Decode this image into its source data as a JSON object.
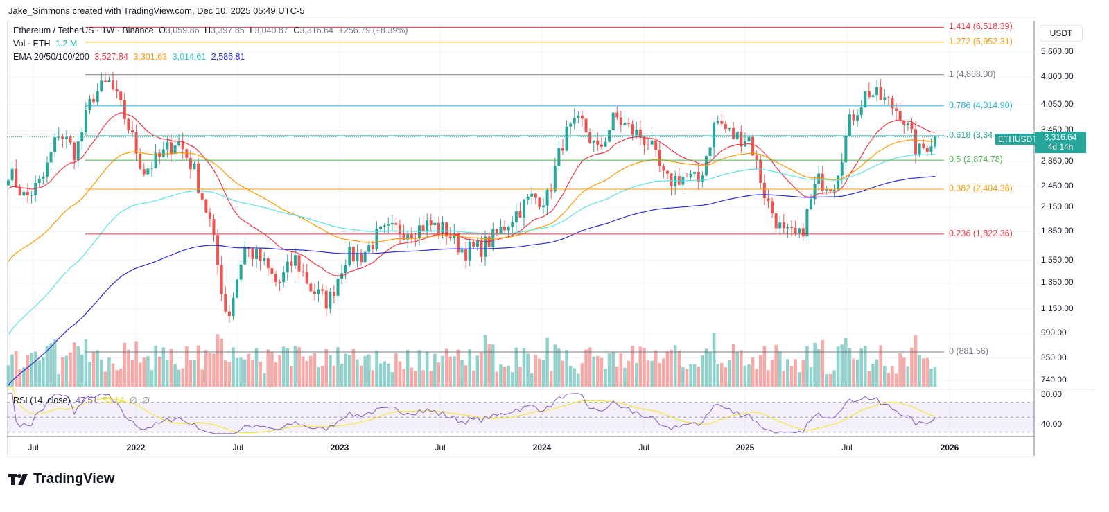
{
  "credit": "Jake_Simmons created with TradingView.com, Dec 10, 2025 05:49 UTC-5",
  "legend": {
    "symbol": "Ethereum / TetherUS · 1W · Binance",
    "o_label": "O",
    "o": "3,059.86",
    "h_label": "H",
    "h": "3,397.85",
    "l_label": "L",
    "l": "3,040.87",
    "c_label": "C",
    "c": "3,316.64",
    "change": "+256.79 (+8.39%)",
    "vol_label": "Vol · ETH",
    "vol": "1.2 M",
    "ema_label": "EMA 20/50/100/200",
    "ema20": "3,527.84",
    "ema50": "3,301.63",
    "ema100": "3,014.61",
    "ema200": "2,586.81",
    "rsi_label": "RSI (14, close)",
    "rsi": "47.51",
    "rsi_ma": "53.14",
    "na1": "∅",
    "na2": "∅"
  },
  "colors": {
    "up": "#26a69a",
    "down": "#ef5350",
    "vol_up": "#92d2cc",
    "vol_down": "#f7a9a7",
    "ema20": "#f23645",
    "ema50": "#ff9800",
    "ema100": "#5ce1e6",
    "ema200": "#2a2ad6",
    "rsi": "#7e57c2",
    "rsi_ma": "#f5e642"
  },
  "axis": {
    "currency": "USDT",
    "price_ticks": [
      "5,600.00",
      "4,800.00",
      "4,050.00",
      "3,450.00",
      "2,850.00",
      "2,450.00",
      "2,150.00",
      "1,850.00",
      "1,550.00",
      "1,350.00",
      "1,150.00",
      "990.00",
      "850.00",
      "740.00"
    ],
    "rsi_ticks": [
      "80.00",
      "40.00"
    ],
    "time_ticks": [
      "Jul",
      "2022",
      "Jul",
      "2023",
      "Jul",
      "2024",
      "Jul",
      "2025",
      "Jul",
      "2026"
    ]
  },
  "last": {
    "symbol": "ETHUSDT",
    "price": "3,316.64",
    "countdown": "4d 14h"
  },
  "fib": [
    {
      "label": "1.414 (6,518.39)",
      "price": 6518.39,
      "color": "#f23645"
    },
    {
      "label": "1.272 (5,952.31)",
      "price": 5952.31,
      "color": "#f59d0b"
    },
    {
      "label": "1 (4,868.00)",
      "price": 4868.0,
      "color": "#787b86"
    },
    {
      "label": "0.786 (4,014.90)",
      "price": 4014.9,
      "color": "#22b3d4"
    },
    {
      "label": "0.618 (3,34",
      "price": 3340,
      "color": "#26a69a"
    },
    {
      "label": "0.5 (2,874.78)",
      "price": 2874.78,
      "color": "#4caf50"
    },
    {
      "label": "0.382 (2,404.38)",
      "price": 2404.38,
      "color": "#f59d0b"
    },
    {
      "label": "0.236 (1,822.36)",
      "price": 1822.36,
      "color": "#f23645"
    },
    {
      "label": "0 (881.56)",
      "price": 881.56,
      "color": "#787b86"
    }
  ],
  "chart_data": {
    "type": "candlestick",
    "interval": "1W",
    "y_scale": "log",
    "grid": true,
    "approx_monthly_close": {
      "months": [
        "2021-05",
        "2021-06",
        "2021-07",
        "2021-08",
        "2021-09",
        "2021-10",
        "2021-11",
        "2021-12",
        "2022-01",
        "2022-02",
        "2022-03",
        "2022-04",
        "2022-05",
        "2022-06",
        "2022-07",
        "2022-08",
        "2022-09",
        "2022-10",
        "2022-11",
        "2022-12",
        "2023-01",
        "2023-02",
        "2023-03",
        "2023-04",
        "2023-05",
        "2023-06",
        "2023-07",
        "2023-08",
        "2023-09",
        "2023-10",
        "2023-11",
        "2023-12",
        "2024-01",
        "2024-02",
        "2024-03",
        "2024-04",
        "2024-05",
        "2024-06",
        "2024-07",
        "2024-08",
        "2024-09",
        "2024-10",
        "2024-11",
        "2024-12",
        "2025-01",
        "2025-02",
        "2025-03",
        "2025-04",
        "2025-05",
        "2025-06",
        "2025-07",
        "2025-08",
        "2025-09",
        "2025-10",
        "2025-11",
        "2025-12"
      ],
      "close": [
        2700,
        2270,
        2530,
        3430,
        3000,
        4290,
        4630,
        3680,
        2690,
        2920,
        3280,
        2730,
        1940,
        1070,
        1680,
        1550,
        1330,
        1570,
        1295,
        1195,
        1585,
        1605,
        1820,
        1870,
        1875,
        1935,
        1855,
        1645,
        1670,
        1815,
        2050,
        2280,
        2280,
        3340,
        3640,
        3015,
        3760,
        3440,
        3230,
        2510,
        2600,
        2520,
        3700,
        3330,
        3300,
        2240,
        1820,
        1790,
        2530,
        2490,
        3700,
        4400,
        4150,
        3850,
        3000,
        3316.64
      ]
    }
  }
}
